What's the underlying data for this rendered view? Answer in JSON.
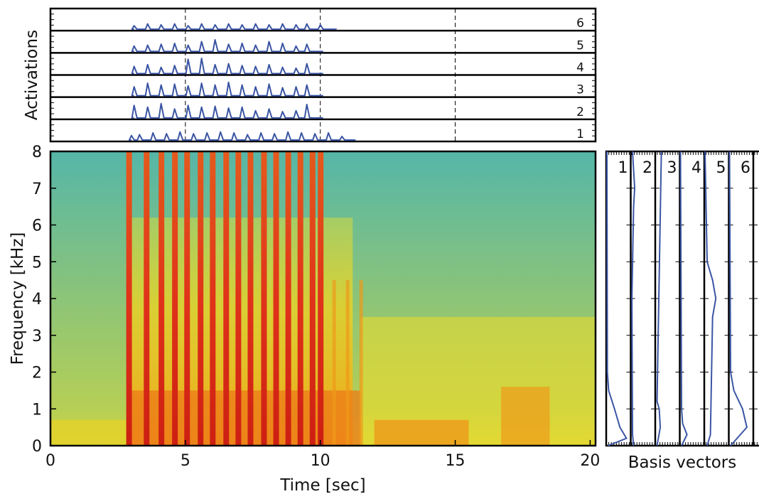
{
  "chart_data": [
    {
      "type": "line",
      "panel": "activations",
      "ylabel": "Activations",
      "xlim": [
        0,
        20.2
      ],
      "row_labels": [
        "1",
        "2",
        "3",
        "4",
        "5",
        "6"
      ],
      "grid": "dashed vertical at 5, 10, 15",
      "series": [
        {
          "values": [
            [
              3.0,
              0.25
            ],
            [
              3.3,
              0.3
            ],
            [
              3.8,
              0.4
            ],
            [
              4.3,
              0.35
            ],
            [
              4.8,
              0.45
            ],
            [
              5.3,
              0.35
            ],
            [
              5.8,
              0.4
            ],
            [
              6.3,
              0.45
            ],
            [
              6.8,
              0.4
            ],
            [
              7.3,
              0.3
            ],
            [
              7.8,
              0.4
            ],
            [
              8.3,
              0.35
            ],
            [
              8.8,
              0.45
            ],
            [
              9.3,
              0.4
            ],
            [
              9.8,
              0.35
            ],
            [
              10.3,
              0.4
            ],
            [
              10.8,
              0.2
            ],
            [
              11.2,
              0.0
            ]
          ]
        },
        {
          "values": [
            [
              3.1,
              0.7
            ],
            [
              3.6,
              0.6
            ],
            [
              4.1,
              0.8
            ],
            [
              4.6,
              0.5
            ],
            [
              5.1,
              0.7
            ],
            [
              5.6,
              0.6
            ],
            [
              6.1,
              0.65
            ],
            [
              6.6,
              0.55
            ],
            [
              7.1,
              0.6
            ],
            [
              7.6,
              0.4
            ],
            [
              8.1,
              0.5
            ],
            [
              8.6,
              0.35
            ],
            [
              9.1,
              0.4
            ],
            [
              9.5,
              0.75
            ],
            [
              10.0,
              0.0
            ]
          ]
        },
        {
          "values": [
            [
              3.1,
              0.5
            ],
            [
              3.6,
              0.7
            ],
            [
              4.1,
              0.6
            ],
            [
              4.6,
              0.65
            ],
            [
              5.1,
              0.55
            ],
            [
              5.6,
              0.7
            ],
            [
              6.1,
              0.6
            ],
            [
              6.6,
              0.75
            ],
            [
              7.1,
              0.6
            ],
            [
              7.6,
              0.5
            ],
            [
              8.1,
              0.65
            ],
            [
              8.6,
              0.45
            ],
            [
              9.1,
              0.5
            ],
            [
              9.5,
              0.6
            ],
            [
              10.0,
              0.0
            ]
          ]
        },
        {
          "values": [
            [
              3.1,
              0.4
            ],
            [
              3.6,
              0.5
            ],
            [
              4.1,
              0.35
            ],
            [
              4.6,
              0.45
            ],
            [
              5.1,
              0.8
            ],
            [
              5.6,
              0.85
            ],
            [
              6.1,
              0.5
            ],
            [
              6.6,
              0.55
            ],
            [
              7.1,
              0.45
            ],
            [
              7.6,
              0.4
            ],
            [
              8.1,
              0.5
            ],
            [
              8.6,
              0.35
            ],
            [
              9.1,
              0.3
            ],
            [
              9.5,
              0.55
            ],
            [
              10.0,
              0.0
            ]
          ]
        },
        {
          "values": [
            [
              3.1,
              0.3
            ],
            [
              3.6,
              0.35
            ],
            [
              4.1,
              0.4
            ],
            [
              4.6,
              0.45
            ],
            [
              5.1,
              0.35
            ],
            [
              5.6,
              0.55
            ],
            [
              6.1,
              0.65
            ],
            [
              6.6,
              0.4
            ],
            [
              7.1,
              0.45
            ],
            [
              7.6,
              0.35
            ],
            [
              8.1,
              0.55
            ],
            [
              8.6,
              0.45
            ],
            [
              9.1,
              0.3
            ],
            [
              9.5,
              0.4
            ],
            [
              10.0,
              0.0
            ]
          ]
        },
        {
          "values": [
            [
              3.1,
              0.2
            ],
            [
              3.6,
              0.3
            ],
            [
              4.1,
              0.25
            ],
            [
              4.6,
              0.3
            ],
            [
              5.1,
              0.2
            ],
            [
              5.6,
              0.3
            ],
            [
              6.1,
              0.25
            ],
            [
              6.6,
              0.3
            ],
            [
              7.1,
              0.25
            ],
            [
              7.6,
              0.3
            ],
            [
              8.1,
              0.25
            ],
            [
              8.6,
              0.3
            ],
            [
              9.1,
              0.25
            ],
            [
              9.5,
              0.3
            ],
            [
              10.0,
              0.25
            ],
            [
              10.5,
              0.0
            ]
          ]
        }
      ]
    },
    {
      "type": "heatmap",
      "panel": "spectrogram",
      "xlabel": "Time [sec]",
      "ylabel": "Frequency [kHz]",
      "xlim": [
        0,
        20.2
      ],
      "ylim": [
        0,
        8
      ],
      "xticks": [
        "0",
        "5",
        "10",
        "15",
        "20"
      ],
      "yticks": [
        "0",
        "1",
        "2",
        "3",
        "4",
        "5",
        "6",
        "7",
        "8"
      ],
      "colormap": [
        "#4fb8a8",
        "#7cc47a",
        "#d6e04a",
        "#f2d21e",
        "#ee8a1a",
        "#d8261a"
      ],
      "strong_onsets_sec": [
        2.9,
        3.55,
        4.1,
        4.6,
        5.05,
        5.55,
        6.0,
        6.5,
        6.95,
        7.4,
        7.9,
        8.35,
        8.8,
        9.25,
        9.7,
        10.0
      ],
      "weaker_onsets_sec": [
        10.5,
        11.0,
        11.5
      ]
    },
    {
      "type": "line",
      "panel": "basis",
      "xlabel": "Basis vectors",
      "ylim": [
        0,
        8
      ],
      "column_labels": [
        "1",
        "2",
        "3",
        "4",
        "5",
        "6"
      ],
      "series": [
        {
          "values": [
            [
              0,
              0.05
            ],
            [
              0.2,
              0.9
            ],
            [
              0.5,
              0.6
            ],
            [
              1.0,
              0.35
            ],
            [
              1.5,
              0.08
            ],
            [
              2,
              0.02
            ],
            [
              8,
              0.0
            ]
          ]
        },
        {
          "values": [
            [
              0,
              0.1
            ],
            [
              0.3,
              0.05
            ],
            [
              4,
              0.02
            ],
            [
              6.5,
              0.1
            ],
            [
              7,
              0.15
            ],
            [
              8,
              0.05
            ]
          ]
        },
        {
          "values": [
            [
              0,
              0.05
            ],
            [
              0.5,
              0.2
            ],
            [
              1.0,
              0.15
            ],
            [
              1.2,
              0.05
            ],
            [
              8,
              0.25
            ]
          ]
        },
        {
          "values": [
            [
              0,
              0.05
            ],
            [
              0.3,
              0.3
            ],
            [
              0.6,
              0.1
            ],
            [
              1,
              0.05
            ],
            [
              8,
              0.0
            ]
          ]
        },
        {
          "values": [
            [
              0,
              0.1
            ],
            [
              0.3,
              0.25
            ],
            [
              3.5,
              0.35
            ],
            [
              4.0,
              0.5
            ],
            [
              4.5,
              0.35
            ],
            [
              5,
              0.1
            ],
            [
              8,
              0.0
            ]
          ]
        },
        {
          "values": [
            [
              0,
              0.05
            ],
            [
              0.5,
              0.8
            ],
            [
              1.0,
              0.6
            ],
            [
              1.5,
              0.2
            ],
            [
              2,
              0.05
            ],
            [
              8,
              0.0
            ]
          ]
        }
      ]
    }
  ]
}
